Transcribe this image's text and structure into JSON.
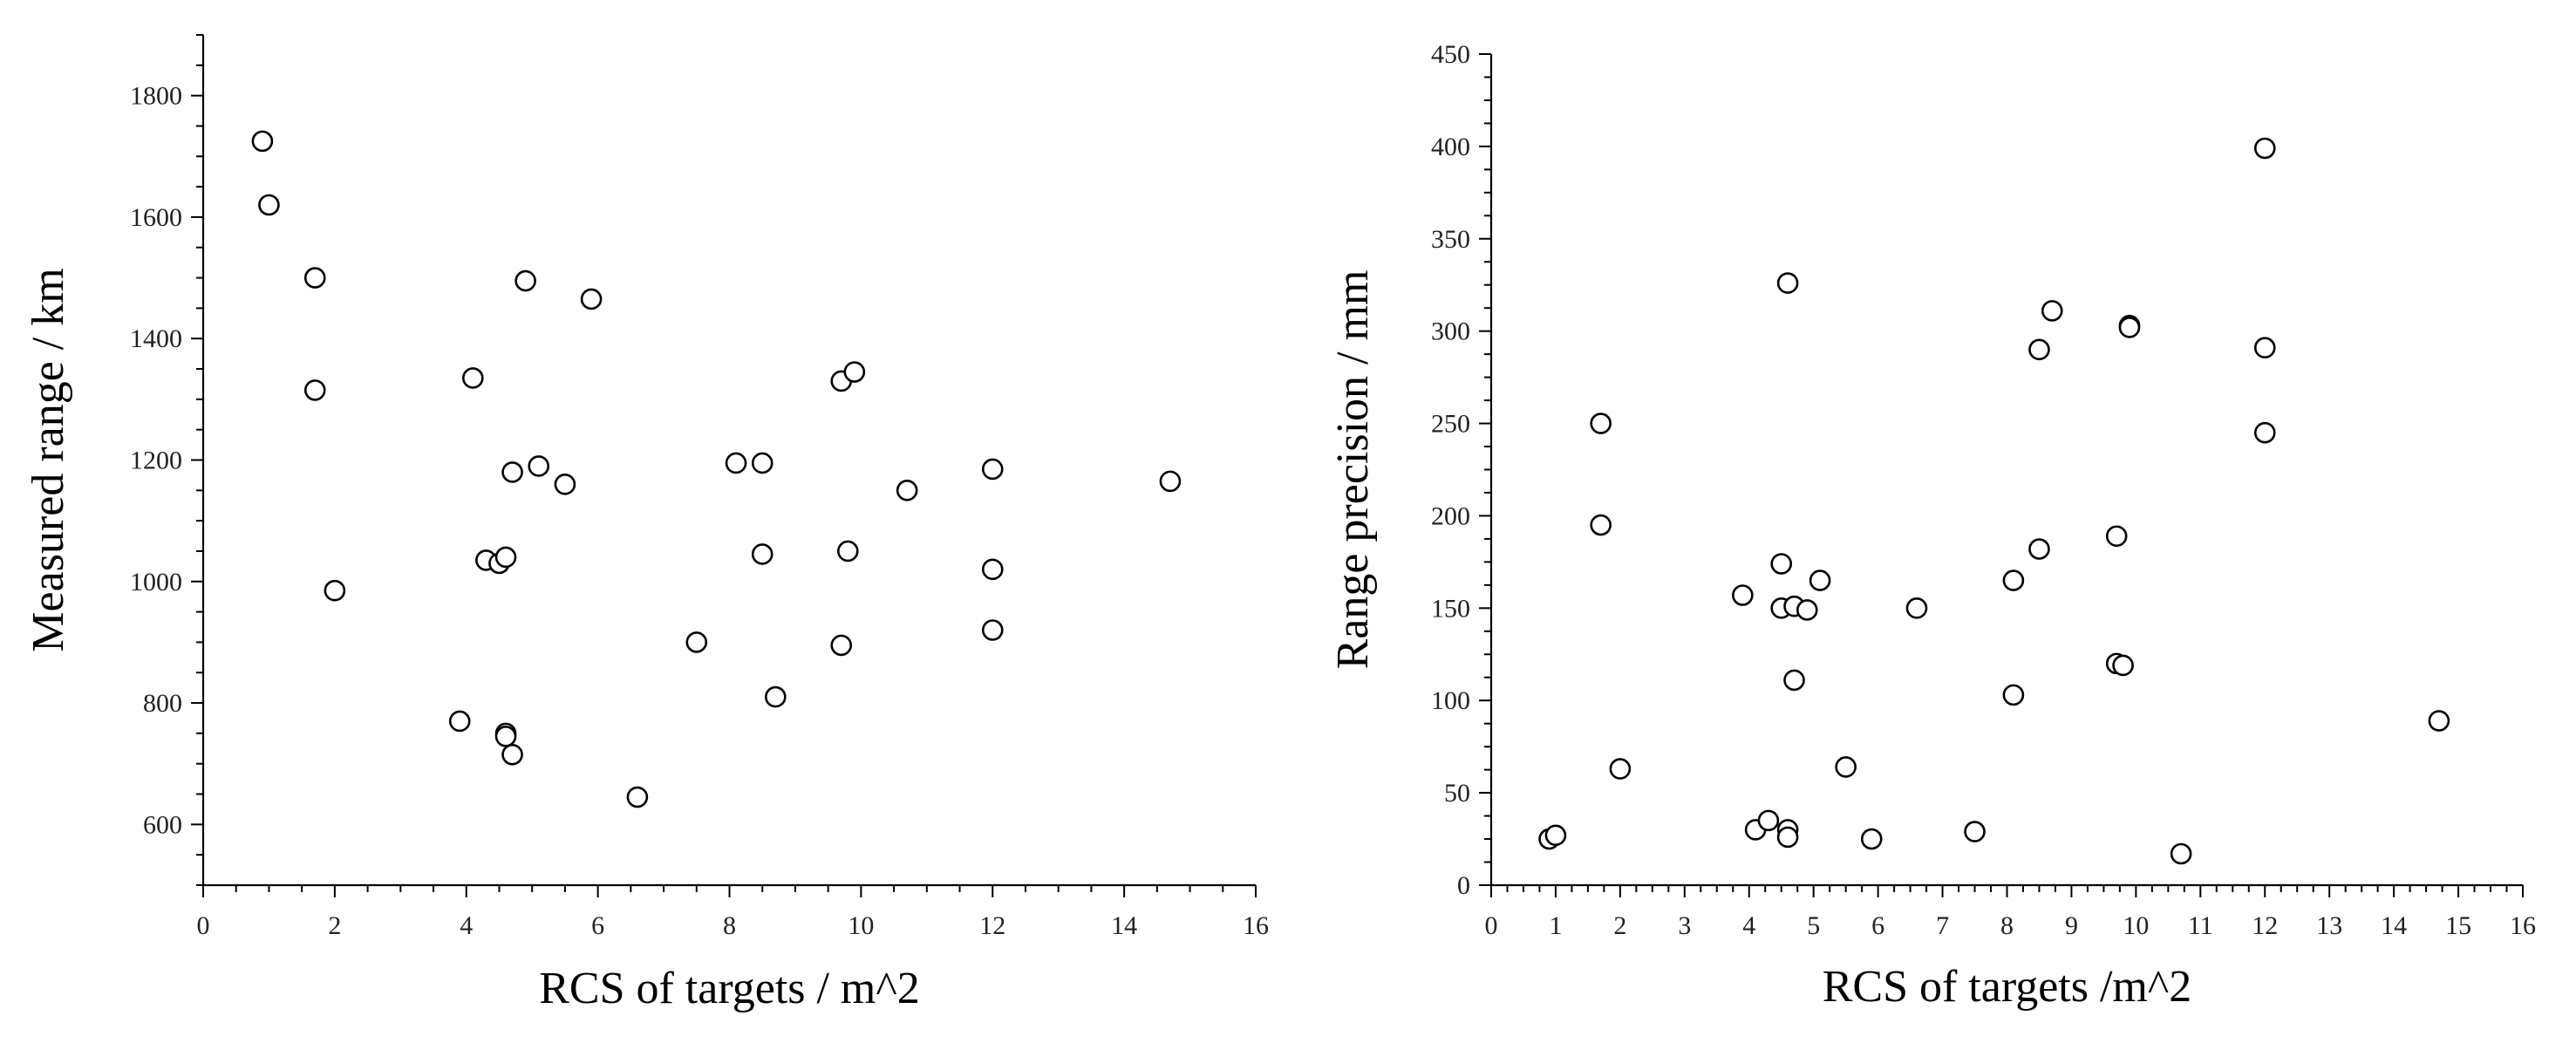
{
  "chart_data": [
    {
      "type": "scatter",
      "xlabel": "RCS of targets / m^2",
      "ylabel": "Measured range / km",
      "xlim": [
        0,
        16
      ],
      "ylim": [
        500,
        1900
      ],
      "xticks": [
        0,
        2,
        4,
        6,
        8,
        10,
        12,
        14,
        16
      ],
      "yticks": [
        600,
        800,
        1000,
        1200,
        1400,
        1600,
        1800
      ],
      "grid": false,
      "points": [
        [
          0.9,
          1725
        ],
        [
          1.0,
          1620
        ],
        [
          1.7,
          1500
        ],
        [
          1.7,
          1315
        ],
        [
          2.0,
          985
        ],
        [
          3.9,
          770
        ],
        [
          4.1,
          1335
        ],
        [
          4.3,
          1035
        ],
        [
          4.5,
          1030
        ],
        [
          4.6,
          1040
        ],
        [
          4.6,
          750
        ],
        [
          4.6,
          745
        ],
        [
          4.7,
          1180
        ],
        [
          4.7,
          715
        ],
        [
          4.9,
          1495
        ],
        [
          5.1,
          1190
        ],
        [
          5.5,
          1160
        ],
        [
          5.9,
          1465
        ],
        [
          6.6,
          645
        ],
        [
          7.5,
          900
        ],
        [
          8.1,
          1195
        ],
        [
          8.5,
          1195
        ],
        [
          8.5,
          1045
        ],
        [
          8.7,
          810
        ],
        [
          9.7,
          1330
        ],
        [
          9.7,
          895
        ],
        [
          9.8,
          1050
        ],
        [
          9.9,
          1345
        ],
        [
          10.7,
          1150
        ],
        [
          12.0,
          1185
        ],
        [
          12.0,
          1020
        ],
        [
          12.0,
          920
        ],
        [
          14.7,
          1165
        ]
      ]
    },
    {
      "type": "scatter",
      "xlabel": "RCS of targets /m^2",
      "ylabel": "Range precision / mm",
      "xlim": [
        0,
        16
      ],
      "ylim": [
        0,
        450
      ],
      "xticks": [
        0,
        1,
        2,
        3,
        4,
        5,
        6,
        7,
        8,
        9,
        10,
        11,
        12,
        13,
        14,
        15,
        16
      ],
      "yticks": [
        0,
        50,
        100,
        150,
        200,
        250,
        300,
        350,
        400,
        450
      ],
      "grid": false,
      "points": [
        [
          0.9,
          25
        ],
        [
          1.0,
          27
        ],
        [
          1.7,
          250
        ],
        [
          1.7,
          195
        ],
        [
          2.0,
          63
        ],
        [
          3.9,
          157
        ],
        [
          4.1,
          30
        ],
        [
          4.3,
          35
        ],
        [
          4.5,
          174
        ],
        [
          4.5,
          150
        ],
        [
          4.6,
          30
        ],
        [
          4.6,
          26
        ],
        [
          4.6,
          326
        ],
        [
          4.7,
          151
        ],
        [
          4.7,
          111
        ],
        [
          4.9,
          149
        ],
        [
          5.1,
          165
        ],
        [
          5.5,
          64
        ],
        [
          5.9,
          25
        ],
        [
          6.6,
          150
        ],
        [
          7.5,
          29
        ],
        [
          8.1,
          165
        ],
        [
          8.1,
          103
        ],
        [
          8.5,
          290
        ],
        [
          8.5,
          182
        ],
        [
          8.7,
          311
        ],
        [
          9.7,
          189
        ],
        [
          9.7,
          120
        ],
        [
          9.8,
          119
        ],
        [
          9.9,
          303
        ],
        [
          9.9,
          302
        ],
        [
          10.7,
          17
        ],
        [
          12.0,
          399
        ],
        [
          12.0,
          291
        ],
        [
          12.0,
          245
        ],
        [
          14.7,
          89
        ]
      ]
    }
  ]
}
